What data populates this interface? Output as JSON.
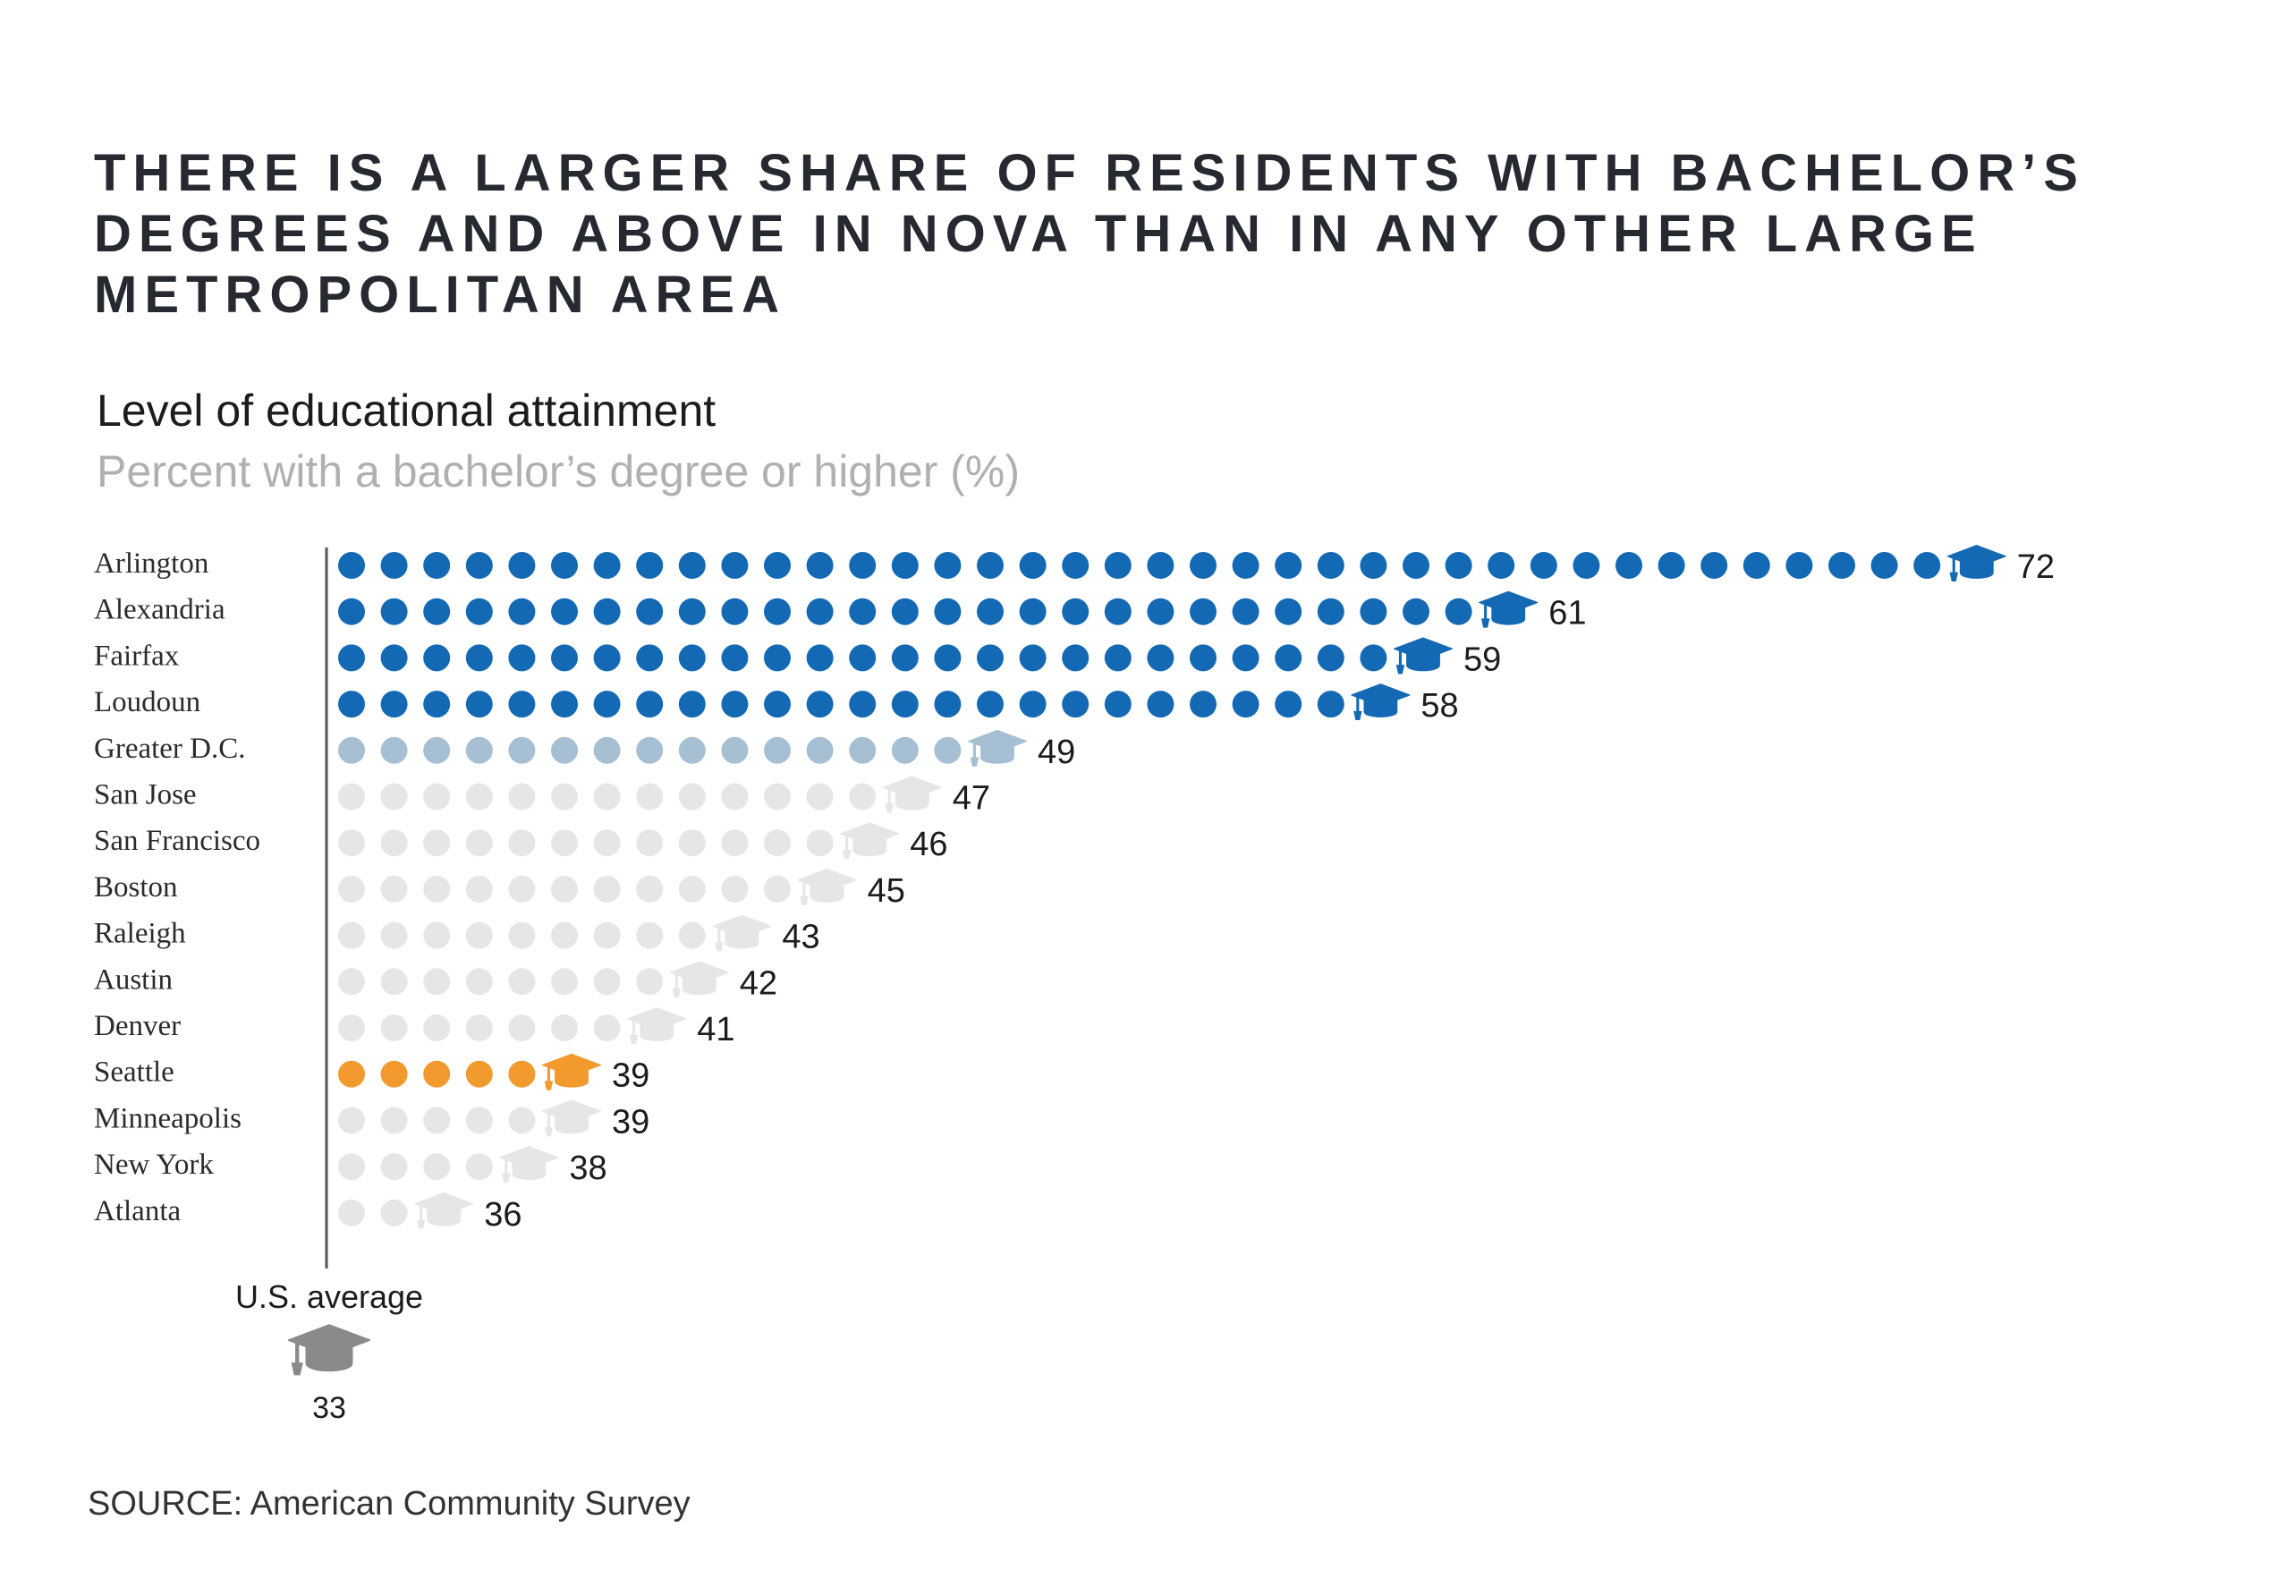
{
  "header": {
    "title": "THERE IS A LARGER SHARE OF RESIDENTS WITH BACHELOR’S DEGREES AND ABOVE IN NOVA THAN IN ANY OTHER LARGE METROPOLITAN AREA",
    "subtitle": "Level of educational attainment",
    "subtitle2": "Percent with a bachelor’s degree or higher (%)"
  },
  "footer": {
    "source": "SOURCE: American Community Survey"
  },
  "colors": {
    "nova_blue": "#1469b4",
    "greater_dc": "#a7bfd3",
    "other": "#e6e6e6",
    "seattle": "#f29a2e",
    "us_average": "#8a8a8a",
    "axis": "#555555"
  },
  "icons": {
    "cap": "graduation-cap-icon"
  },
  "chart_data": {
    "type": "bar",
    "categories": [
      "Arlington",
      "Alexandria",
      "Fairfax",
      "Loudoun",
      "Greater D.C.",
      "San Jose",
      "San Francisco",
      "Boston",
      "Raleigh",
      "Austin",
      "Denver",
      "Seattle",
      "Minneapolis",
      "New York",
      "Atlanta"
    ],
    "values": [
      72,
      61,
      59,
      58,
      49,
      47,
      46,
      45,
      43,
      42,
      41,
      39,
      39,
      38,
      36
    ],
    "groups": [
      "nova",
      "nova",
      "nova",
      "nova",
      "greater_dc",
      "other",
      "other",
      "other",
      "other",
      "other",
      "other",
      "seattle",
      "other",
      "other",
      "other"
    ],
    "baseline": 33,
    "baseline_label": "U.S. average",
    "unit": "%"
  }
}
